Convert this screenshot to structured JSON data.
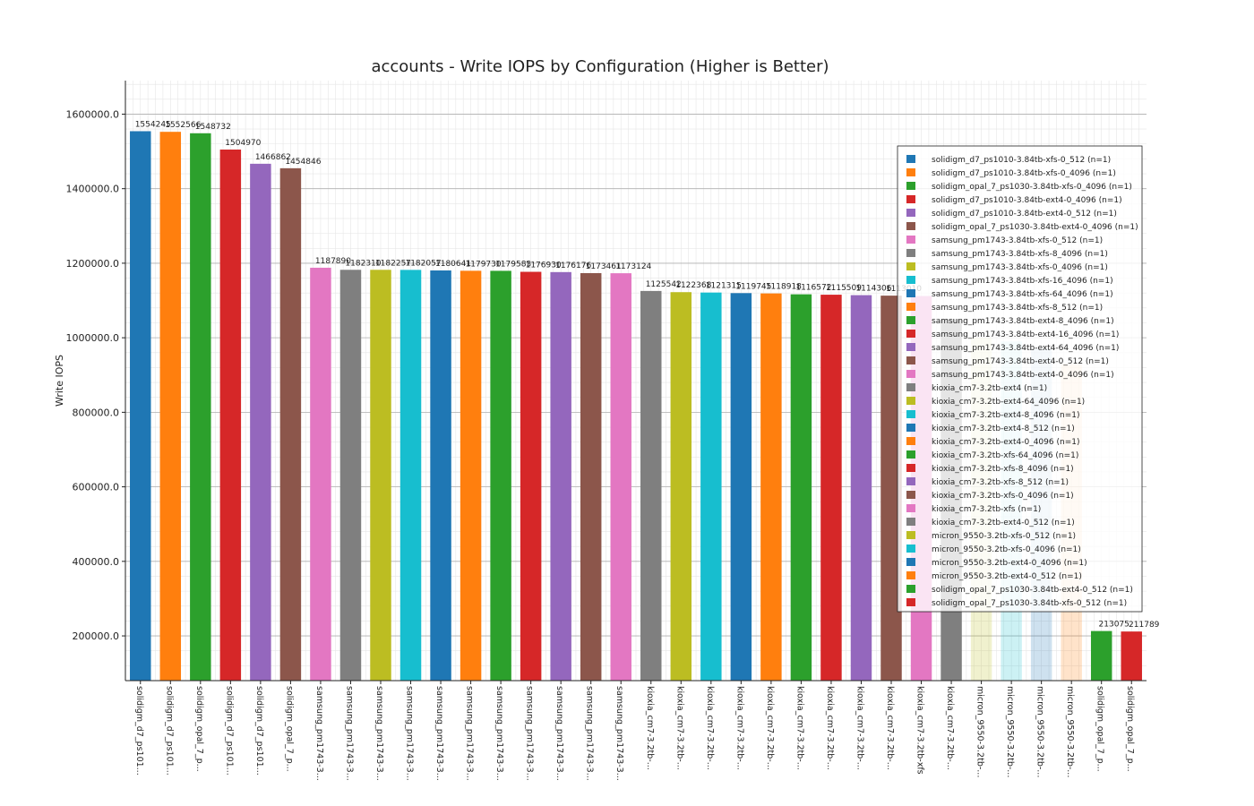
{
  "chart_data": {
    "type": "bar",
    "title": "accounts - Write IOPS by Configuration (Higher is Better)",
    "xlabel": "",
    "ylabel": "Write IOPS",
    "ylim": [
      80000,
      1690000
    ],
    "yticks": [
      200000,
      400000,
      600000,
      800000,
      1000000,
      1200000,
      1400000,
      1600000
    ],
    "ytick_labels": [
      "200000.0",
      "400000.0",
      "600000.0",
      "800000.0",
      "1000000.0",
      "1200000.0",
      "1400000.0",
      "1600000.0"
    ],
    "grid": true,
    "legend_position": "right",
    "categories": [
      "solidigm_d7_ps101...",
      "solidigm_d7_ps101...",
      "solidigm_opal_7_p...",
      "solidigm_d7_ps101...",
      "solidigm_d7_ps101...",
      "solidigm_opal_7_p...",
      "samsung_pm1743-3...",
      "samsung_pm1743-3...",
      "samsung_pm1743-3...",
      "samsung_pm1743-3...",
      "samsung_pm1743-3...",
      "samsung_pm1743-3...",
      "samsung_pm1743-3...",
      "samsung_pm1743-3...",
      "samsung_pm1743-3...",
      "samsung_pm1743-3...",
      "samsung_pm1743-3...",
      "kioxia_cm7-3.2tb-...",
      "kioxia_cm7-3.2tb-...",
      "kioxia_cm7-3.2tb-...",
      "kioxia_cm7-3.2tb-...",
      "kioxia_cm7-3.2tb-...",
      "kioxia_cm7-3.2tb-...",
      "kioxia_cm7-3.2tb-...",
      "kioxia_cm7-3.2tb-...",
      "kioxia_cm7-3.2tb-...",
      "kioxia_cm7-3.2tb-xfs",
      "kioxia_cm7-3.2tb-...",
      "micron_9550-3.2tb-...",
      "micron_9550-3.2tb-...",
      "micron_9550-3.2tb-...",
      "micron_9550-3.2tb-...",
      "solidigm_opal_7_p...",
      "solidigm_opal_7_p..."
    ],
    "values": [
      1554245,
      1552566,
      1548732,
      1504970,
      1466862,
      1454846,
      1187890,
      1182310,
      1182257,
      1182057,
      1180641,
      1179730,
      1179583,
      1176930,
      1176176,
      1173461,
      1173124,
      1125542,
      1122368,
      1121315,
      1119745,
      1118918,
      1116572,
      1115509,
      1114306,
      1113010,
      1112000,
      1050000,
      1000000,
      990000,
      970000,
      930000,
      213075,
      211789
    ],
    "bar_labels": [
      "1554245",
      "1552566",
      "1548732",
      "1504970",
      "1466862",
      "1454846",
      "1187890",
      "1182310",
      "1182257",
      "1182057",
      "1180641",
      "1179730",
      "1179583",
      "1176930",
      "1176176",
      "1173461",
      "1173124",
      "1125542",
      "1122368",
      "1121315",
      "1119745",
      "1118918",
      "1116572",
      "1115509",
      "1114306",
      "1113010",
      "",
      "",
      "",
      "",
      "",
      "",
      "213075",
      "211789"
    ],
    "colors": [
      "#1f77b4",
      "#ff7f0e",
      "#2ca02c",
      "#d62728",
      "#9467bd",
      "#8c564b",
      "#e377c2",
      "#7f7f7f",
      "#bcbd22",
      "#17becf",
      "#1f77b4",
      "#ff7f0e",
      "#2ca02c",
      "#d62728",
      "#9467bd",
      "#8c564b",
      "#e377c2",
      "#7f7f7f",
      "#bcbd22",
      "#17becf",
      "#1f77b4",
      "#ff7f0e",
      "#2ca02c",
      "#d62728",
      "#9467bd",
      "#8c564b",
      "#e377c2",
      "#7f7f7f",
      "#bcbd22",
      "#17becf",
      "#1f77b4",
      "#ff7f0e",
      "#2ca02c",
      "#d62728"
    ],
    "legend": [
      "solidigm_d7_ps1010-3.84tb-xfs-0_512 (n=1)",
      "solidigm_d7_ps1010-3.84tb-xfs-0_4096 (n=1)",
      "solidigm_opal_7_ps1030-3.84tb-xfs-0_4096 (n=1)",
      "solidigm_d7_ps1010-3.84tb-ext4-0_4096 (n=1)",
      "solidigm_d7_ps1010-3.84tb-ext4-0_512 (n=1)",
      "solidigm_opal_7_ps1030-3.84tb-ext4-0_4096 (n=1)",
      "samsung_pm1743-3.84tb-xfs-0_512 (n=1)",
      "samsung_pm1743-3.84tb-xfs-8_4096 (n=1)",
      "samsung_pm1743-3.84tb-xfs-0_4096 (n=1)",
      "samsung_pm1743-3.84tb-xfs-16_4096 (n=1)",
      "samsung_pm1743-3.84tb-xfs-64_4096 (n=1)",
      "samsung_pm1743-3.84tb-xfs-8_512 (n=1)",
      "samsung_pm1743-3.84tb-ext4-8_4096 (n=1)",
      "samsung_pm1743-3.84tb-ext4-16_4096 (n=1)",
      "samsung_pm1743-3.84tb-ext4-64_4096 (n=1)",
      "samsung_pm1743-3.84tb-ext4-0_512 (n=1)",
      "samsung_pm1743-3.84tb-ext4-0_4096 (n=1)",
      "kioxia_cm7-3.2tb-ext4 (n=1)",
      "kioxia_cm7-3.2tb-ext4-64_4096 (n=1)",
      "kioxia_cm7-3.2tb-ext4-8_4096 (n=1)",
      "kioxia_cm7-3.2tb-ext4-8_512 (n=1)",
      "kioxia_cm7-3.2tb-ext4-0_4096 (n=1)",
      "kioxia_cm7-3.2tb-xfs-64_4096 (n=1)",
      "kioxia_cm7-3.2tb-xfs-8_4096 (n=1)",
      "kioxia_cm7-3.2tb-xfs-8_512 (n=1)",
      "kioxia_cm7-3.2tb-xfs-0_4096 (n=1)",
      "kioxia_cm7-3.2tb-xfs (n=1)",
      "kioxia_cm7-3.2tb-ext4-0_512 (n=1)",
      "micron_9550-3.2tb-xfs-0_512 (n=1)",
      "micron_9550-3.2tb-xfs-0_4096 (n=1)",
      "micron_9550-3.2tb-ext4-0_4096 (n=1)",
      "micron_9550-3.2tb-ext4-0_512 (n=1)",
      "solidigm_opal_7_ps1030-3.84tb-ext4-0_512 (n=1)",
      "solidigm_opal_7_ps1030-3.84tb-xfs-0_512 (n=1)"
    ]
  }
}
